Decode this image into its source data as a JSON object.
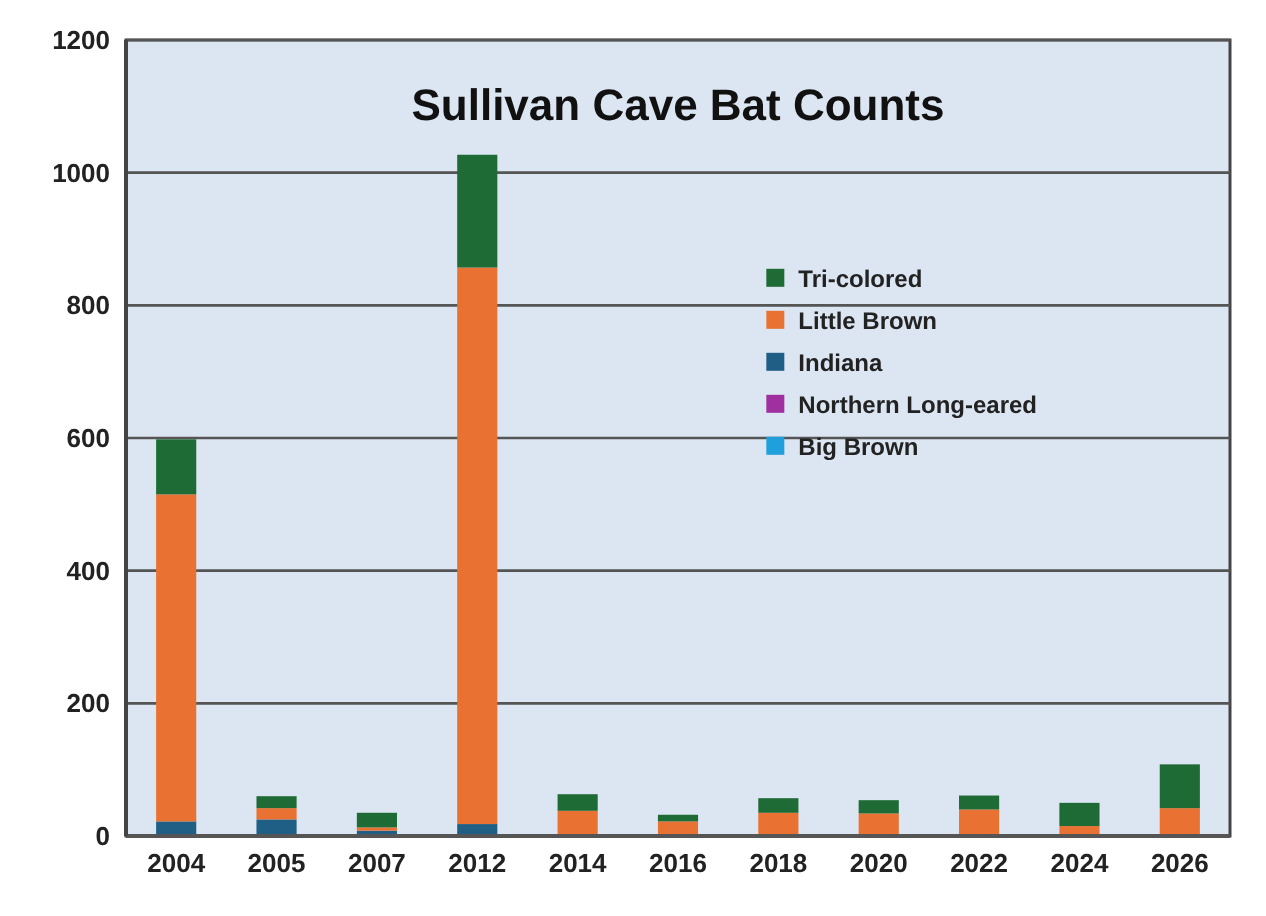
{
  "chart_data": {
    "type": "bar",
    "title": "Sullivan Cave Bat Counts",
    "stacked": true,
    "categories": [
      "2004",
      "2005",
      "2007",
      "2012",
      "2014",
      "2016",
      "2018",
      "2020",
      "2022",
      "2024",
      "2026"
    ],
    "series": [
      {
        "name": "Big Brown",
        "color": "#1fa0dc",
        "values": [
          0,
          0,
          0,
          0,
          0,
          0,
          0,
          0,
          0,
          0,
          0
        ]
      },
      {
        "name": "Northern Long-eared",
        "color": "#a030a0",
        "values": [
          0,
          0,
          0,
          0,
          0,
          0,
          0,
          0,
          0,
          0,
          0
        ]
      },
      {
        "name": "Indiana",
        "color": "#1f5f85",
        "values": [
          22,
          25,
          8,
          18,
          0,
          0,
          0,
          0,
          0,
          0,
          0
        ]
      },
      {
        "name": "Little Brown",
        "color": "#e97132",
        "values": [
          493,
          17,
          5,
          839,
          38,
          22,
          35,
          34,
          40,
          15,
          42
        ]
      },
      {
        "name": "Tri-colored",
        "color": "#1e6b35",
        "values": [
          83,
          18,
          22,
          170,
          25,
          10,
          22,
          20,
          21,
          35,
          66
        ]
      }
    ],
    "ylim": [
      0,
      1200
    ],
    "yticks": [
      0,
      200,
      400,
      600,
      800,
      1000,
      1200
    ],
    "grid": "y",
    "legend": "center"
  }
}
